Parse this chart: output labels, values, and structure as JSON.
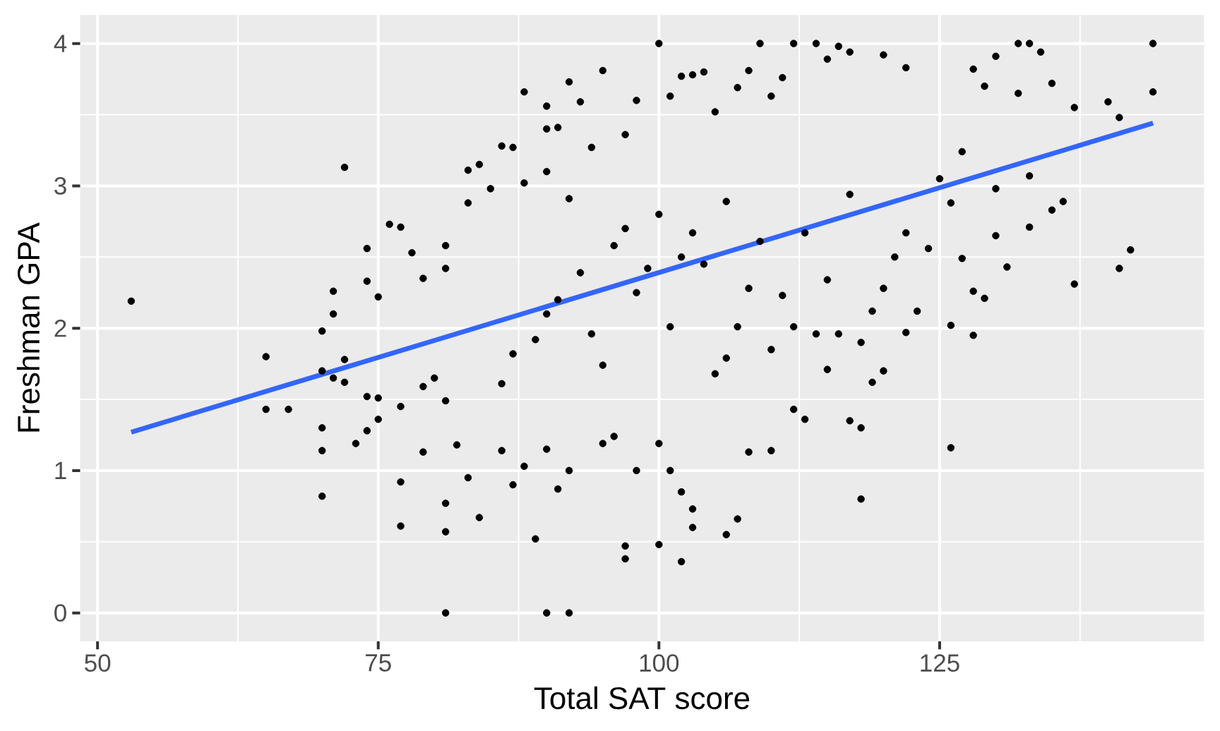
{
  "chart_data": {
    "type": "scatter",
    "xlabel": "Total SAT score",
    "ylabel": "Freshman GPA",
    "xlim": [
      48.45,
      148.55
    ],
    "ylim": [
      -0.2,
      4.2
    ],
    "xticks": [
      50,
      75,
      100,
      125
    ],
    "yticks": [
      0,
      1,
      2,
      3,
      4
    ],
    "grid": true,
    "marker": "circle",
    "series": [
      {
        "color": "#000000",
        "x": [
          53,
          65,
          65,
          67,
          70,
          70,
          70,
          70,
          70,
          71,
          71,
          71,
          72,
          72,
          72,
          73,
          74,
          74,
          74,
          74,
          75,
          75,
          75,
          76,
          77,
          77,
          77,
          77,
          78,
          79,
          79,
          79,
          80,
          81,
          81,
          81,
          81,
          81,
          81,
          82,
          83,
          83,
          83,
          84,
          84,
          85,
          86,
          86,
          86,
          87,
          87,
          87,
          88,
          88,
          88,
          89,
          89,
          90,
          90,
          90,
          90,
          90,
          90,
          91,
          91,
          91,
          92,
          92,
          92,
          92,
          93,
          93,
          94,
          94,
          95,
          95,
          95,
          96,
          96,
          97,
          97,
          97,
          97,
          98,
          98,
          98,
          99,
          100,
          100,
          100,
          100,
          101,
          101,
          101,
          102,
          102,
          102,
          102,
          103,
          103,
          103,
          103,
          104,
          104,
          105,
          105,
          106,
          106,
          106,
          107,
          107,
          107,
          108,
          108,
          108,
          109,
          109,
          110,
          110,
          110,
          111,
          111,
          112,
          112,
          112,
          113,
          113,
          114,
          114,
          115,
          115,
          115,
          116,
          116,
          117,
          117,
          117,
          118,
          118,
          118,
          119,
          119,
          120,
          120,
          120,
          121,
          122,
          122,
          122,
          123,
          124,
          125,
          126,
          126,
          126,
          127,
          127,
          128,
          128,
          128,
          129,
          129,
          130,
          130,
          130,
          131,
          132,
          132,
          133,
          133,
          133,
          134,
          135,
          135,
          136,
          137,
          137,
          140,
          141,
          141,
          142,
          144,
          144
        ],
        "values": [
          2.19,
          1.8,
          1.43,
          1.43,
          1.98,
          1.7,
          1.3,
          1.14,
          0.82,
          2.26,
          2.1,
          1.65,
          3.13,
          1.78,
          1.62,
          1.19,
          2.56,
          2.33,
          1.52,
          1.28,
          2.22,
          1.51,
          1.36,
          2.73,
          2.71,
          1.45,
          0.92,
          0.61,
          2.53,
          2.35,
          1.59,
          1.13,
          1.65,
          2.58,
          2.42,
          1.49,
          0.77,
          0.57,
          0,
          1.18,
          3.11,
          2.88,
          0.95,
          3.15,
          0.67,
          2.98,
          3.28,
          1.61,
          1.14,
          3.27,
          1.82,
          0.9,
          3.66,
          3.02,
          1.03,
          1.92,
          0.52,
          3.56,
          3.4,
          3.1,
          2.1,
          1.15,
          0,
          3.41,
          2.2,
          0.87,
          3.73,
          2.91,
          1,
          0,
          3.59,
          2.39,
          3.27,
          1.96,
          3.81,
          1.74,
          1.19,
          2.58,
          1.24,
          3.36,
          2.7,
          0.47,
          0.38,
          3.6,
          2.25,
          1,
          2.42,
          4,
          2.8,
          1.19,
          0.48,
          3.63,
          2.01,
          1,
          3.77,
          2.5,
          0.85,
          0.36,
          3.78,
          2.67,
          0.73,
          0.6,
          3.8,
          2.45,
          3.52,
          1.68,
          2.89,
          1.79,
          0.55,
          3.69,
          2.01,
          0.66,
          3.81,
          2.28,
          1.13,
          4,
          2.61,
          3.63,
          1.85,
          1.14,
          3.76,
          2.23,
          4,
          2.01,
          1.43,
          2.67,
          1.36,
          4,
          1.96,
          3.89,
          2.34,
          1.71,
          3.98,
          1.96,
          3.94,
          2.94,
          1.35,
          1.9,
          1.3,
          0.8,
          2.12,
          1.62,
          3.92,
          2.28,
          1.7,
          2.5,
          3.83,
          2.67,
          1.97,
          2.12,
          2.56,
          3.05,
          2.88,
          2.02,
          1.16,
          3.24,
          2.49,
          3.82,
          2.26,
          1.95,
          3.7,
          2.21,
          3.91,
          2.98,
          2.65,
          2.43,
          4,
          3.65,
          4,
          3.07,
          2.71,
          3.94,
          3.72,
          2.83,
          2.89,
          3.55,
          2.31,
          3.59,
          3.48,
          2.42,
          2.55,
          4,
          3.66
        ]
      },
      {
        "type": "line",
        "color": "#3366ff",
        "marker": "none",
        "x": [
          53,
          144
        ],
        "values": [
          1.27,
          3.44
        ]
      }
    ]
  }
}
